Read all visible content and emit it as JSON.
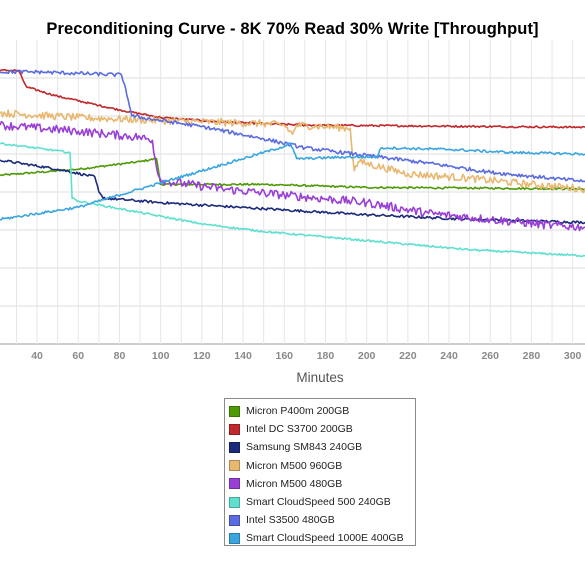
{
  "chart_data": {
    "type": "line",
    "title": "Preconditioning Curve - 8K 70% Read 30% Write [Throughput]",
    "xlabel": "Minutes",
    "ylabel": "",
    "xlim": [
      22,
      306
    ],
    "ylim": [
      0,
      100
    ],
    "x_ticks": [
      40,
      60,
      80,
      100,
      120,
      140,
      160,
      180,
      200,
      220,
      240,
      260,
      280,
      300
    ],
    "x_tick_labels": [
      "40",
      "60",
      "80",
      "100",
      "120",
      "140",
      "160",
      "180",
      "200",
      "220",
      "240",
      "260",
      "280",
      "300"
    ],
    "y_gridlines": [
      0,
      12.5,
      25,
      37.5,
      50,
      62.5,
      75,
      87.5
    ],
    "grid": true,
    "legend_position": "bottom-center",
    "series": [
      {
        "name": "Micron P400m 200GB",
        "color": "#4e9a06",
        "noise": 0.3,
        "x": [
          22,
          60,
          90,
          98,
          100,
          150,
          200,
          250,
          306
        ],
        "y": [
          55.5,
          57.5,
          60,
          61,
          52.5,
          52.5,
          51.5,
          51.3,
          51
        ]
      },
      {
        "name": "Intel DC S3700 200GB",
        "color": "#c0282b",
        "noise": 0.3,
        "x": [
          22,
          31,
          33,
          35,
          50,
          70,
          80,
          100,
          130,
          170,
          306
        ],
        "y": [
          90,
          90,
          87,
          84.5,
          81.5,
          78.5,
          77,
          74.5,
          73,
          72,
          71.3
        ]
      },
      {
        "name": "Samsung SM843 240GB",
        "color": "#1b2a7b",
        "noise": 0.4,
        "x": [
          22,
          50,
          68,
          70,
          72,
          100,
          150,
          200,
          250,
          306
        ],
        "y": [
          60.5,
          57.5,
          55,
          50,
          48,
          46.5,
          44.5,
          42.5,
          41,
          40
        ]
      },
      {
        "name": "Micron M500 960GB",
        "color": "#e8b870",
        "noise": 1.2,
        "x": [
          22,
          60,
          100,
          150,
          160,
          164,
          166,
          180,
          192,
          194,
          196,
          220,
          250,
          280,
          306
        ],
        "y": [
          76,
          74.5,
          73.5,
          72.5,
          72,
          69,
          72,
          71.5,
          71,
          57,
          60,
          56,
          54.5,
          52.5,
          51
        ]
      },
      {
        "name": "Micron M500 480GB",
        "color": "#9a3fd6",
        "noise": 1.4,
        "x": [
          22,
          60,
          90,
          96,
          98,
          100,
          103,
          130,
          160,
          200,
          230,
          260,
          290,
          306
        ],
        "y": [
          72,
          70,
          68,
          67,
          58,
          54,
          53.5,
          51,
          49,
          46.5,
          43,
          41,
          39,
          38.5
        ]
      },
      {
        "name": "Smart CloudSpeed 500 240GB",
        "color": "#5fe0cf",
        "noise": 0.3,
        "x": [
          22,
          56,
          57,
          60,
          80,
          100,
          120,
          150,
          200,
          250,
          306
        ],
        "y": [
          66,
          63,
          48,
          47,
          44.5,
          42,
          39.5,
          37,
          34,
          31,
          29
        ]
      },
      {
        "name": "Intel S3500 480GB",
        "color": "#5b6be0",
        "noise": 0.6,
        "x": [
          22,
          40,
          60,
          81,
          83,
          86,
          100,
          120,
          150,
          170,
          200,
          230,
          260,
          290,
          306
        ],
        "y": [
          89.5,
          89.5,
          89,
          88.5,
          84,
          75,
          73.5,
          71.5,
          67.5,
          64.5,
          62,
          59.5,
          56.5,
          54.5,
          53.5
        ]
      },
      {
        "name": "Smart CloudSpeed 1000E 400GB",
        "color": "#3aa6e0",
        "noise": 0.4,
        "x": [
          22,
          60,
          100,
          130,
          160,
          163,
          166,
          170,
          190,
          205,
          207,
          210,
          240,
          270,
          306
        ],
        "y": [
          41,
          45,
          53,
          59,
          65,
          66,
          61,
          61,
          61.5,
          61.5,
          64.5,
          64.5,
          64,
          63,
          62.5
        ]
      }
    ]
  }
}
